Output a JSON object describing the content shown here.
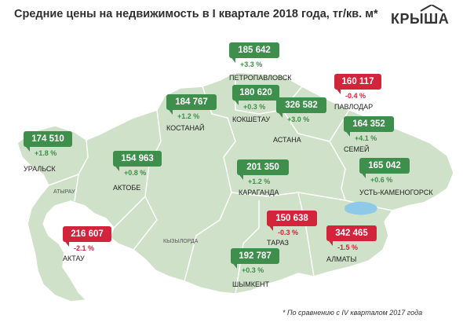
{
  "header": {
    "title": "Средние цены на недвижимость в I квартале 2018 года, тг/кв. м*",
    "logo_text": "КРЫША"
  },
  "footnote": "* По сравнению с IV кварталом 2017 года",
  "colors": {
    "map_fill": "#cfe1c8",
    "map_border": "#ffffff",
    "lake": "#8fc9e8",
    "up": "#3f8f4c",
    "down": "#d2243a"
  },
  "regions": {
    "atyrau": "АТЫРАУ",
    "kyzylorda": "КЫЗЫЛОРДА"
  },
  "cities": [
    {
      "id": "petropavlovsk",
      "name": "ПЕТРОПАВЛОВСК",
      "price": "185 642",
      "change": "+3.3 %",
      "trend": "up"
    },
    {
      "id": "pavlodar",
      "name": "ПАВЛОДАР",
      "price": "160 117",
      "change": "-0.4 %",
      "trend": "down"
    },
    {
      "id": "kostanay",
      "name": "КОСТАНАЙ",
      "price": "184 767",
      "change": "+1.2 %",
      "trend": "up"
    },
    {
      "id": "kokshetau",
      "name": "КОКШЕТАУ",
      "price": "180 620",
      "change": "+0.3 %",
      "trend": "up"
    },
    {
      "id": "astana",
      "name": "АСТАНА",
      "price": "326 582",
      "change": "+3.0 %",
      "trend": "up"
    },
    {
      "id": "semey",
      "name": "СЕМЕЙ",
      "price": "164 352",
      "change": "+4.1 %",
      "trend": "up"
    },
    {
      "id": "uralsk",
      "name": "УРАЛЬСК",
      "price": "174 510",
      "change": "+1.8 %",
      "trend": "up"
    },
    {
      "id": "aktobe",
      "name": "АКТОБЕ",
      "price": "154 963",
      "change": "+0.8 %",
      "trend": "up"
    },
    {
      "id": "karaganda",
      "name": "КАРАГАНДА",
      "price": "201 350",
      "change": "+1.2 %",
      "trend": "up"
    },
    {
      "id": "ust-kamenogorsk",
      "name": "УСТЬ-КАМЕНОГОРСК",
      "price": "165 042",
      "change": "+0.6 %",
      "trend": "up"
    },
    {
      "id": "aktau",
      "name": "АКТАУ",
      "price": "216 607",
      "change": "-2.1 %",
      "trend": "down"
    },
    {
      "id": "taraz",
      "name": "ТАРАЗ",
      "price": "150 638",
      "change": "-0.3 %",
      "trend": "down"
    },
    {
      "id": "almaty",
      "name": "АЛМАТЫ",
      "price": "342 465",
      "change": "-1.5 %",
      "trend": "down"
    },
    {
      "id": "shymkent",
      "name": "ШЫМКЕНТ",
      "price": "192 787",
      "change": "+0.3 %",
      "trend": "up"
    }
  ]
}
